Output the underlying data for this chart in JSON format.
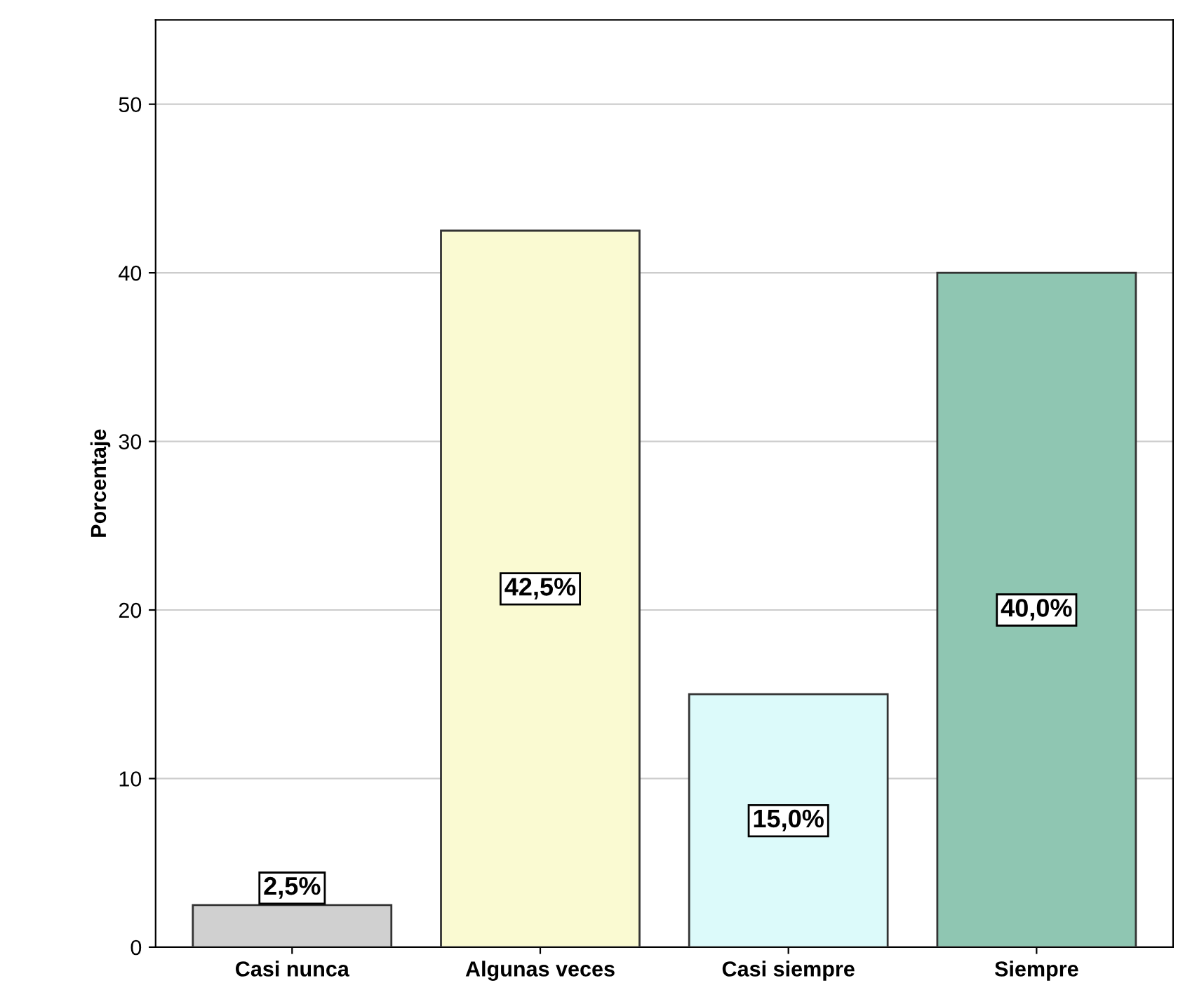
{
  "chart_data": {
    "type": "bar",
    "ylabel": "Porcentaje",
    "categories": [
      "Casi nunca",
      "Algunas veces",
      "Casi siempre",
      "Siempre"
    ],
    "values": [
      2.5,
      42.5,
      15.0,
      40.0
    ],
    "colors": [
      "#d0d0d0",
      "#fafad2",
      "#dcfafa",
      "#8fc6b2"
    ],
    "value_labels": [
      "2,5%",
      "42,5%",
      "15,0%",
      "40,0%"
    ],
    "ylim": [
      0,
      55
    ],
    "yticks": [
      0,
      10,
      20,
      30,
      40,
      50
    ],
    "grid": "y",
    "legend": false
  }
}
